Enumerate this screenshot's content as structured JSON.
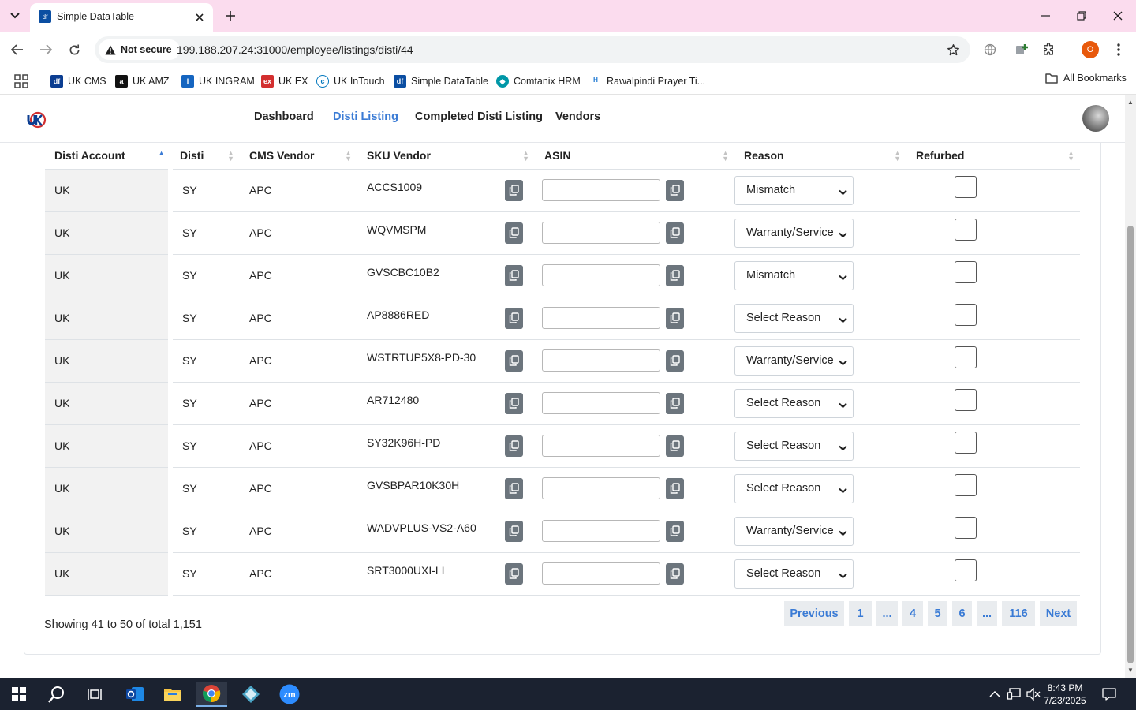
{
  "browser": {
    "tab_title": "Simple DataTable",
    "security_label": "Not secure",
    "url": "199.188.207.24:31000/employee/listings/disti/44",
    "profile_initial": "O"
  },
  "bookmarks": [
    {
      "label": "UK CMS",
      "icon": "uk-cms-icon",
      "color": "#0b3d91"
    },
    {
      "label": "UK AMZ",
      "icon": "amazon-icon",
      "color": "#111111"
    },
    {
      "label": "UK INGRAM",
      "icon": "ingram-icon",
      "color": "#1565c0"
    },
    {
      "label": "UK EX",
      "icon": "ex-icon",
      "color": "#d32f2f"
    },
    {
      "label": "UK InTouch",
      "icon": "intouch-icon",
      "color": "#0277bd"
    },
    {
      "label": "Simple DataTable",
      "icon": "datatable-icon",
      "color": "#0b4ea2"
    },
    {
      "label": "Comtanix HRM",
      "icon": "hrm-icon",
      "color": "#0097a7"
    },
    {
      "label": "Rawalpindi Prayer Ti...",
      "icon": "prayer-icon",
      "color": "#1976d2"
    }
  ],
  "all_bookmarks_label": "All Bookmarks",
  "nav": {
    "items": [
      "Dashboard",
      "Disti Listing",
      "Completed Disti Listing",
      "Vendors"
    ],
    "active": "Disti Listing"
  },
  "table": {
    "columns": [
      "Disti Account",
      "Disti",
      "CMS Vendor",
      "SKU Vendor",
      "ASIN",
      "Reason",
      "Refurbed"
    ],
    "rows": [
      {
        "account": "UK",
        "disti": "SY",
        "cms_vendor": "APC",
        "sku": "ACCS1009",
        "asin": "",
        "reason": "Mismatch",
        "refurbed": false
      },
      {
        "account": "UK",
        "disti": "SY",
        "cms_vendor": "APC",
        "sku": "WQVMSPM",
        "asin": "",
        "reason": "Warranty/Service",
        "refurbed": false
      },
      {
        "account": "UK",
        "disti": "SY",
        "cms_vendor": "APC",
        "sku": "GVSCBC10B2",
        "asin": "",
        "reason": "Mismatch",
        "refurbed": false
      },
      {
        "account": "UK",
        "disti": "SY",
        "cms_vendor": "APC",
        "sku": "AP8886RED",
        "asin": "",
        "reason": "Select Reason",
        "refurbed": false
      },
      {
        "account": "UK",
        "disti": "SY",
        "cms_vendor": "APC",
        "sku": "WSTRTUP5X8-PD-30",
        "asin": "",
        "reason": "Warranty/Service",
        "refurbed": false
      },
      {
        "account": "UK",
        "disti": "SY",
        "cms_vendor": "APC",
        "sku": "AR712480",
        "asin": "",
        "reason": "Select Reason",
        "refurbed": false
      },
      {
        "account": "UK",
        "disti": "SY",
        "cms_vendor": "APC",
        "sku": "SY32K96H-PD",
        "asin": "",
        "reason": "Select Reason",
        "refurbed": false
      },
      {
        "account": "UK",
        "disti": "SY",
        "cms_vendor": "APC",
        "sku": "GVSBPAR10K30H",
        "asin": "",
        "reason": "Select Reason",
        "refurbed": false
      },
      {
        "account": "UK",
        "disti": "SY",
        "cms_vendor": "APC",
        "sku": "WADVPLUS-VS2-A60",
        "asin": "",
        "reason": "Warranty/Service",
        "refurbed": false
      },
      {
        "account": "UK",
        "disti": "SY",
        "cms_vendor": "APC",
        "sku": "SRT3000UXI-LI",
        "asin": "",
        "reason": "Select Reason",
        "refurbed": false
      }
    ]
  },
  "footer": {
    "showing_text": "Showing 41 to 50 of total 1,151",
    "pagination": [
      "Previous",
      "1",
      "...",
      "4",
      "5",
      "6",
      "...",
      "116",
      "Next"
    ],
    "current_page": "5"
  },
  "taskbar": {
    "time": "8:43 PM",
    "date": "7/23/2025",
    "apps": [
      "start-icon",
      "search-icon",
      "task-view-icon",
      "outlook-icon",
      "file-explorer-icon",
      "chrome-icon",
      "app-icon",
      "zoom-icon"
    ]
  },
  "colors": {
    "accent": "#3a7bd5",
    "titlebar": "#fbdcee",
    "copy_button": "#6c757d",
    "taskbar": "#1b2230"
  }
}
